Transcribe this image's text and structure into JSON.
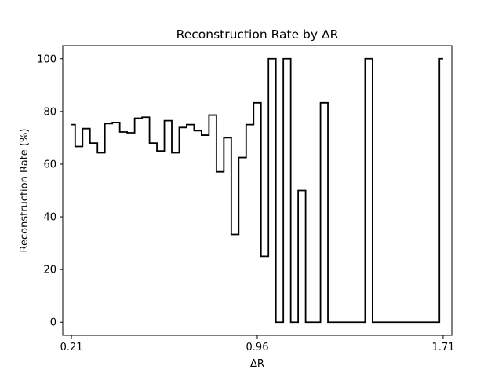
{
  "chart_data": {
    "type": "line",
    "drawstyle": "steps-mid",
    "title": "Reconstruction Rate by ΔR",
    "xlabel": "ΔR",
    "ylabel": "Reconstruction Rate (%)",
    "xlim": [
      0.175,
      1.745
    ],
    "ylim": [
      -5,
      105
    ],
    "xticks": [
      {
        "value": 0.21,
        "label": "0.21"
      },
      {
        "value": 0.96,
        "label": "0.96"
      },
      {
        "value": 1.71,
        "label": "1.71"
      }
    ],
    "yticks": [
      {
        "value": 0,
        "label": "0"
      },
      {
        "value": 20,
        "label": "20"
      },
      {
        "value": 40,
        "label": "40"
      },
      {
        "value": 60,
        "label": "60"
      },
      {
        "value": 80,
        "label": "80"
      },
      {
        "value": 100,
        "label": "100"
      }
    ],
    "grid": false,
    "line_color": "#000000",
    "x": [
      0.21,
      0.24,
      0.27,
      0.3,
      0.33,
      0.36,
      0.39,
      0.42,
      0.45,
      0.48,
      0.51,
      0.54,
      0.57,
      0.6,
      0.63,
      0.66,
      0.69,
      0.72,
      0.75,
      0.78,
      0.81,
      0.84,
      0.87,
      0.9,
      0.93,
      0.96,
      0.99,
      1.02,
      1.05,
      1.08,
      1.11,
      1.14,
      1.17,
      1.2,
      1.23,
      1.26,
      1.29,
      1.32,
      1.35,
      1.38,
      1.41,
      1.44,
      1.47,
      1.5,
      1.53,
      1.56,
      1.59,
      1.62,
      1.65,
      1.68,
      1.71
    ],
    "y": [
      75,
      66.7,
      73.5,
      68,
      64.3,
      75.4,
      75.8,
      72.2,
      71.9,
      77.4,
      77.8,
      68,
      65,
      76.5,
      64.3,
      73.9,
      75,
      72.7,
      71,
      78.6,
      57.1,
      70,
      33.3,
      62.5,
      75,
      83.3,
      25,
      100,
      0,
      100,
      0,
      50,
      0,
      0,
      83.3,
      0,
      0,
      0,
      0,
      0,
      100,
      0,
      0,
      0,
      0,
      0,
      0,
      0,
      0,
      0,
      100
    ]
  }
}
